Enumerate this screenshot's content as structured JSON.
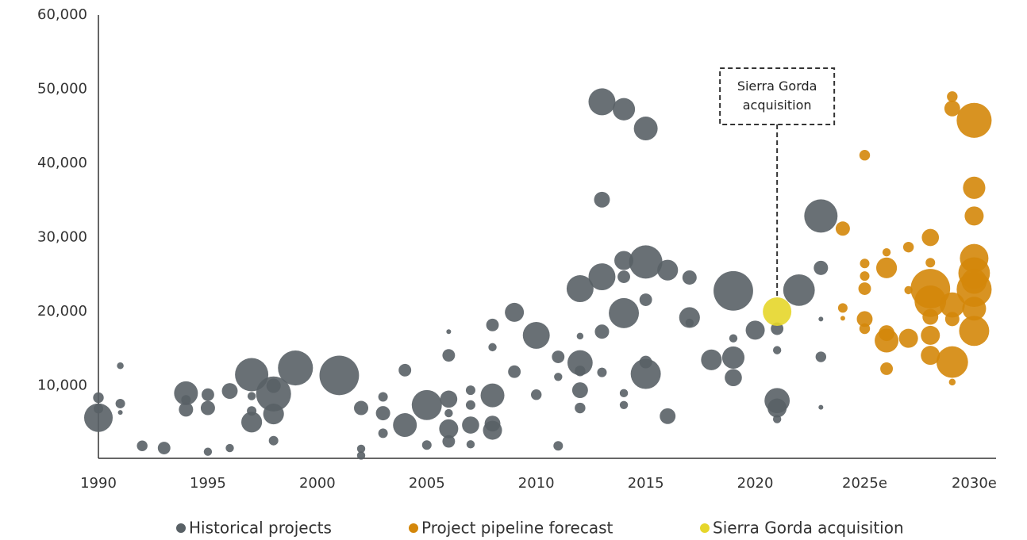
{
  "chart_data": {
    "type": "scatter",
    "xlim": [
      1990,
      2031
    ],
    "ylim": [
      0,
      60000
    ],
    "xticks": [
      1990,
      1995,
      2000,
      2005,
      2010,
      2015,
      2020,
      {
        "value": 2025,
        "label": "2025e"
      },
      {
        "value": 2030,
        "label": "2030e"
      }
    ],
    "yticks": [
      {
        "value": 10000,
        "label": "10,000"
      },
      {
        "value": 20000,
        "label": "20,000"
      },
      {
        "value": 30000,
        "label": "30,000"
      },
      {
        "value": 40000,
        "label": "40,000"
      },
      {
        "value": 50000,
        "label": "50,000"
      },
      {
        "value": 60000,
        "label": "60,000"
      }
    ],
    "grid": false,
    "legend": "bottom",
    "annotation": {
      "text": "Sierra Gorda acquisition",
      "x": 2021
    },
    "series": [
      {
        "name": "Historical projects",
        "color": "#596166",
        "x": [
          1990,
          1990,
          1990,
          1991,
          1991,
          1991,
          1992,
          1993,
          1994,
          1994,
          1994,
          1995,
          1995,
          1995,
          1996,
          1996,
          1997,
          1997,
          1997,
          1997,
          1998,
          1998,
          1998,
          1998,
          1999,
          2001,
          2002,
          2002,
          2002,
          2003,
          2003,
          2003,
          2004,
          2004,
          2005,
          2005,
          2006,
          2006,
          2006,
          2006,
          2006,
          2006,
          2007,
          2007,
          2007,
          2007,
          2008,
          2008,
          2008,
          2008,
          2008,
          2009,
          2009,
          2010,
          2010,
          2011,
          2011,
          2011,
          2012,
          2012,
          2012,
          2012,
          2012,
          2012,
          2013,
          2013,
          2013,
          2013,
          2013,
          2014,
          2014,
          2014,
          2014,
          2014,
          2014,
          2015,
          2015,
          2015,
          2015,
          2015,
          2016,
          2016,
          2017,
          2017,
          2017,
          2018,
          2019,
          2019,
          2019,
          2019,
          2020,
          2021,
          2021,
          2021,
          2021,
          2021,
          2022,
          2023,
          2023,
          2023,
          2023,
          2023
        ],
        "values": [
          5700,
          8400,
          6900,
          12700,
          7600,
          6400,
          1900,
          1600,
          9000,
          6800,
          8100,
          8800,
          7000,
          1100,
          1600,
          9300,
          11500,
          5100,
          6600,
          8600,
          8900,
          6200,
          10000,
          2600,
          12400,
          11400,
          7000,
          1500,
          600,
          6300,
          8500,
          3600,
          4700,
          12100,
          7400,
          2000,
          4200,
          8200,
          14100,
          2500,
          6300,
          17300,
          4700,
          7400,
          9400,
          2100,
          8700,
          4000,
          4900,
          18200,
          15200,
          19900,
          11900,
          16800,
          8800,
          1900,
          13900,
          11200,
          13100,
          23100,
          9400,
          7000,
          16700,
          12000,
          48300,
          24700,
          35100,
          17300,
          11800,
          47300,
          19800,
          26900,
          24700,
          9000,
          7400,
          44700,
          26700,
          11600,
          21600,
          13200,
          25600,
          5900,
          24600,
          19200,
          18500,
          13500,
          22800,
          13800,
          11100,
          16400,
          17500,
          8000,
          7000,
          17700,
          14800,
          5500,
          22900,
          32900,
          25900,
          13900,
          19000,
          7100
        ],
        "sizes": [
          36,
          5,
          4,
          2,
          4,
          1,
          5,
          7,
          25,
          9,
          4,
          7,
          9,
          3,
          3,
          11,
          49,
          19,
          4,
          3,
          54,
          19,
          9,
          4,
          54,
          69,
          9,
          3,
          3,
          9,
          4,
          4,
          25,
          7,
          40,
          4,
          16,
          13,
          7,
          7,
          3,
          1,
          13,
          4,
          4,
          3,
          25,
          16,
          11,
          7,
          3,
          16,
          7,
          32,
          5,
          4,
          7,
          3,
          28,
          32,
          11,
          5,
          2,
          5,
          32,
          32,
          11,
          9,
          4,
          22,
          40,
          16,
          7,
          3,
          3,
          25,
          49,
          40,
          7,
          7,
          19,
          11,
          9,
          19,
          3,
          19,
          69,
          22,
          13,
          3,
          16,
          28,
          16,
          7,
          3,
          3,
          44,
          49,
          9,
          5,
          1,
          1
        ]
      },
      {
        "name": "Project pipeline forecast",
        "color": "#d4870a",
        "x": [
          2024,
          2024,
          2024,
          2025,
          2025,
          2025,
          2025,
          2025,
          2025,
          2026,
          2026,
          2026,
          2026,
          2026,
          2027,
          2027,
          2027,
          2028,
          2028,
          2028,
          2028,
          2028,
          2028,
          2028,
          2029,
          2029,
          2029,
          2029,
          2029,
          2029,
          2030,
          2030,
          2030,
          2030,
          2030,
          2030,
          2030,
          2030,
          2030
        ],
        "values": [
          31200,
          20500,
          19100,
          41100,
          19000,
          23100,
          26500,
          24800,
          17700,
          25900,
          16100,
          12300,
          28000,
          17100,
          28700,
          16400,
          22900,
          30000,
          23100,
          21400,
          16800,
          14100,
          26600,
          19300,
          49000,
          47400,
          13200,
          20900,
          19000,
          10500,
          45800,
          36700,
          32900,
          27200,
          25200,
          23000,
          17400,
          20400,
          24100
        ],
        "sizes": [
          9,
          4,
          1,
          5,
          11,
          7,
          4,
          4,
          5,
          19,
          25,
          7,
          3,
          11,
          5,
          16,
          3,
          13,
          69,
          44,
          16,
          16,
          4,
          11,
          5,
          11,
          44,
          28,
          9,
          2,
          54,
          22,
          16,
          36,
          44,
          54,
          40,
          25,
          28
        ]
      },
      {
        "name": "Sierra Gorda acquisition",
        "color": "#e6d62a",
        "x": [
          2021
        ],
        "values": [
          20000
        ],
        "sizes": [
          36
        ]
      }
    ]
  }
}
